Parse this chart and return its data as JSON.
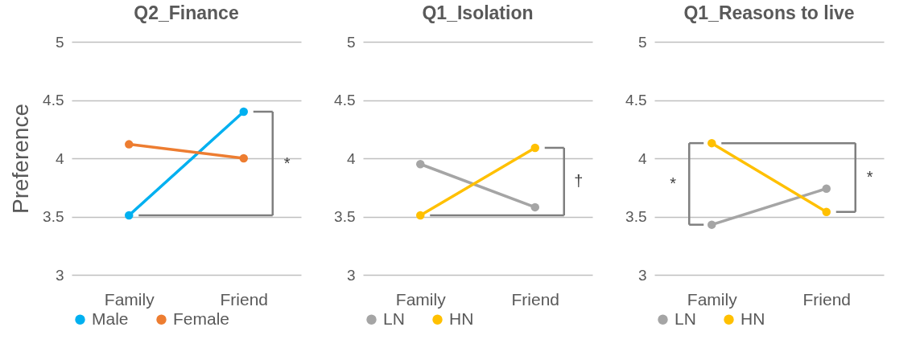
{
  "chart_data": [
    {
      "type": "line",
      "title": "Q2_Finance",
      "ylabel": "Preference",
      "categories": [
        "Family",
        "Friend"
      ],
      "series": [
        {
          "name": "Male",
          "color": "#00b0f0",
          "values": [
            3.51,
            4.4
          ]
        },
        {
          "name": "Female",
          "color": "#ed7d31",
          "values": [
            4.12,
            4.0
          ]
        }
      ],
      "ylim": [
        3,
        5
      ],
      "yticks": [
        3,
        3.5,
        4,
        4.5,
        5
      ],
      "grid": "y",
      "legend": "bottom",
      "marker": "circle",
      "line_style": "solid",
      "annotations": [
        "*"
      ]
    },
    {
      "type": "line",
      "title": "Q1_Isolation",
      "categories": [
        "Family",
        "Friend"
      ],
      "series": [
        {
          "name": "LN",
          "color": "#a5a5a5",
          "values": [
            3.95,
            3.58
          ]
        },
        {
          "name": "HN",
          "color": "#ffc000",
          "values": [
            3.51,
            4.09
          ]
        }
      ],
      "ylim": [
        3,
        5
      ],
      "yticks": [
        3,
        3.5,
        4,
        4.5,
        5
      ],
      "grid": "y",
      "legend": "bottom",
      "marker": "circle",
      "line_style": "solid",
      "annotations": [
        "†"
      ]
    },
    {
      "type": "line",
      "title": "Q1_Reasons to live",
      "categories": [
        "Family",
        "Friend"
      ],
      "series": [
        {
          "name": "LN",
          "color": "#a5a5a5",
          "values": [
            3.43,
            3.74
          ]
        },
        {
          "name": "HN",
          "color": "#ffc000",
          "values": [
            4.13,
            3.54
          ]
        }
      ],
      "ylim": [
        3,
        5
      ],
      "yticks": [
        3,
        3.5,
        4,
        4.5,
        5
      ],
      "grid": "y",
      "legend": "bottom",
      "marker": "circle",
      "line_style": "solid",
      "annotations": [
        "*",
        "*"
      ]
    }
  ]
}
